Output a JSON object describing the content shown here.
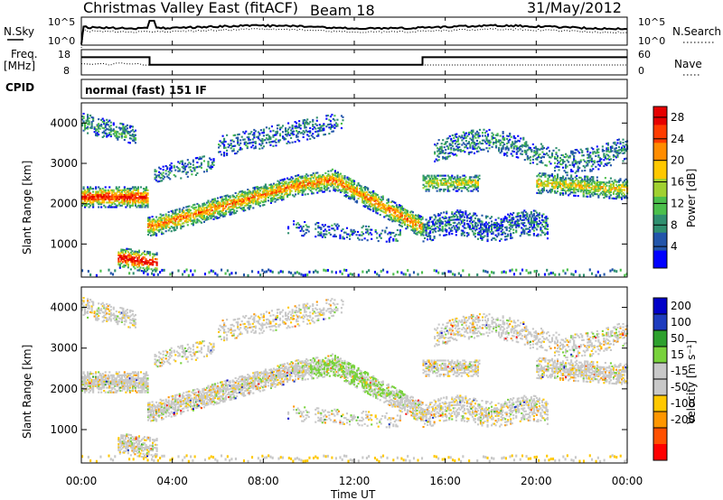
{
  "header": {
    "title": "Christmas Valley East (fitACF)",
    "beam": "Beam 18",
    "date": "31/May/2012"
  },
  "params": {
    "nsky_label": "N.Sky",
    "nsearch_label": "N.Search",
    "freq_label_line1": "Freq.",
    "freq_label_line2": "[MHz]",
    "nave_label": "Nave",
    "cpid_label": "CPID",
    "cpid_value": "normal (fast) 151 IF",
    "nsky_ticks": [
      "10^5",
      "10^0"
    ],
    "nsearch_ticks": [
      "10^5",
      "10^0"
    ],
    "freq_ticks": [
      "18",
      "8"
    ],
    "nave_ticks": [
      "60",
      "0"
    ]
  },
  "colors": {
    "power_scale": [
      "#0000ff",
      "#2255aa",
      "#2f8f6f",
      "#4bbf4b",
      "#a0d030",
      "#ffc800",
      "#ff8c00",
      "#ff3c00",
      "#e60000"
    ],
    "velocity_scale": [
      "#ff0000",
      "#ff5000",
      "#ff9600",
      "#ffc800",
      "#c8c8c8",
      "#c8c8c8",
      "#78d23c",
      "#2da02d",
      "#1e3cbe",
      "#0000c8"
    ]
  },
  "chart_data": [
    {
      "type": "line",
      "name_label": "N.Sky / N.Search",
      "x": [
        "00:00",
        "24:00"
      ],
      "yscale": "log",
      "ylim": [
        1,
        100000
      ]
    },
    {
      "type": "line",
      "name_label": "Freq. / Nave",
      "freq_segments": [
        {
          "start": "00:00",
          "end": "03:00",
          "value": 15
        },
        {
          "start": "03:00",
          "end": "15:00",
          "value": 12
        },
        {
          "start": "15:00",
          "end": "24:00",
          "value": 15
        }
      ],
      "ylim_freq": [
        8,
        18
      ],
      "ylim_nave": [
        0,
        60
      ]
    },
    {
      "type": "heatmap",
      "variable": "Power",
      "colorbar_label": "Power [dB]",
      "colorbar_ticks": [
        4,
        8,
        12,
        16,
        20,
        24,
        28
      ],
      "colorbar_range": [
        0,
        30
      ],
      "ylabel": "Slant Range [km]",
      "yticks": [
        1000,
        2000,
        3000,
        4000
      ],
      "ylim": [
        180,
        4500
      ],
      "xlim": [
        "00:00",
        "24:00"
      ]
    },
    {
      "type": "heatmap",
      "variable": "Velocity",
      "colorbar_label": "Velocity [m s⁻¹]",
      "colorbar_ticks": [
        -200,
        -100,
        -50,
        -15,
        15,
        50,
        100,
        200
      ],
      "ylabel": "Slant Range [km]",
      "yticks": [
        1000,
        2000,
        3000,
        4000
      ],
      "ylim": [
        180,
        4500
      ],
      "xlabel": "Time UT",
      "xticks": [
        "00:00",
        "04:00",
        "08:00",
        "12:00",
        "16:00",
        "20:00",
        "00:00"
      ],
      "xlim": [
        "00:00",
        "24:00"
      ]
    }
  ]
}
